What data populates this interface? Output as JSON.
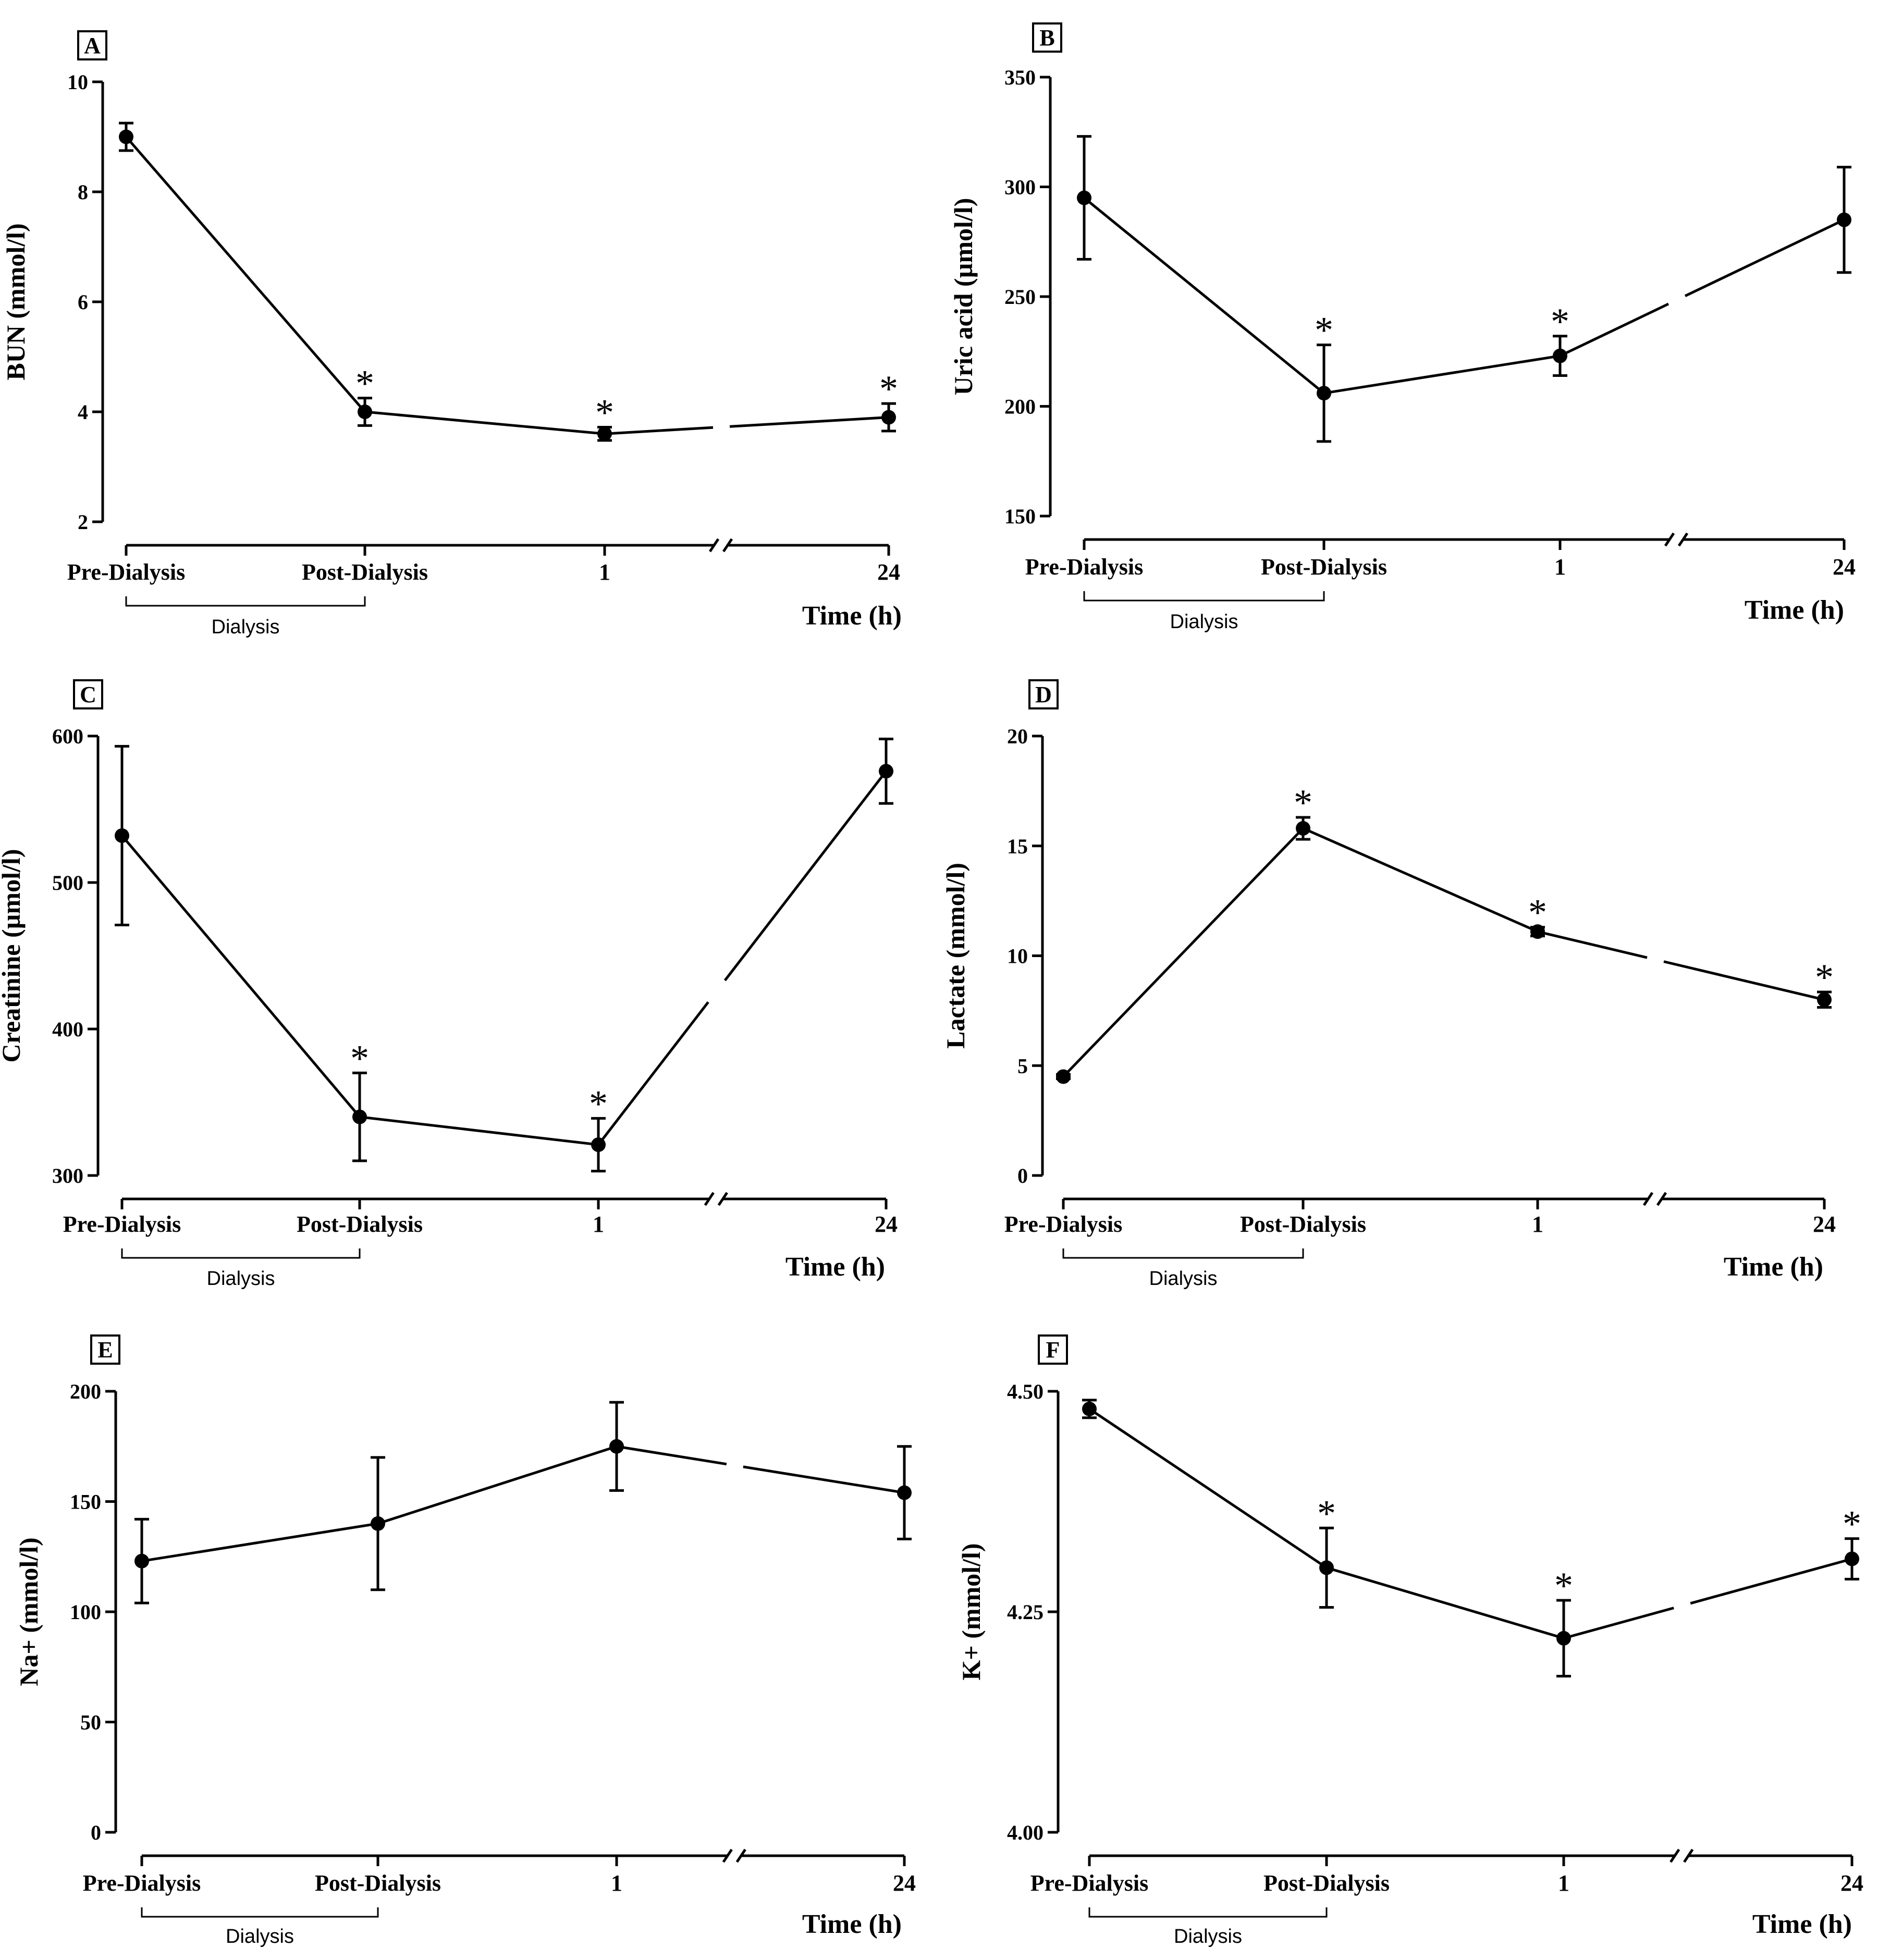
{
  "figure": {
    "common": {
      "categories": [
        "Pre-Dialysis",
        "Post-Dialysis",
        "1",
        "24"
      ],
      "xlabel": "Time (h)",
      "bracket_label": "Dialysis"
    },
    "panels": [
      {
        "id": "A",
        "ylabel": "BUN (mmol/l)"
      },
      {
        "id": "B",
        "ylabel": "Uric acid (µmol/l)"
      },
      {
        "id": "C",
        "ylabel": "Creatinine (µmol/l)"
      },
      {
        "id": "D",
        "ylabel": "Lactate (mmol/l)"
      },
      {
        "id": "E",
        "ylabel": "Na+ (mmol/l)"
      },
      {
        "id": "F",
        "ylabel": "K+ (mmol/l)"
      }
    ]
  },
  "chart_data": [
    {
      "type": "line",
      "panel": "A",
      "categories": [
        "Pre-Dialysis",
        "Post-Dialysis",
        "1",
        "24"
      ],
      "values": [
        9.0,
        4.0,
        3.6,
        3.9
      ],
      "error": [
        0.25,
        0.25,
        0.12,
        0.25
      ],
      "significant": [
        false,
        true,
        true,
        true
      ],
      "ylabel": "BUN (mmol/l)",
      "xlabel": "Time (h)",
      "ylim": [
        2,
        10
      ],
      "yticks": [
        2,
        4,
        6,
        8,
        10
      ],
      "ytick_labels": [
        "2",
        "4",
        "6",
        "8",
        "10"
      ],
      "axis_break": "between 1 and 24"
    },
    {
      "type": "line",
      "panel": "B",
      "categories": [
        "Pre-Dialysis",
        "Post-Dialysis",
        "1",
        "24"
      ],
      "values": [
        295,
        206,
        223,
        285
      ],
      "error": [
        28,
        22,
        9,
        24
      ],
      "significant": [
        false,
        true,
        true,
        false
      ],
      "ylabel": "Uric acid (µmol/l)",
      "xlabel": "Time (h)",
      "ylim": [
        150,
        350
      ],
      "yticks": [
        150,
        200,
        250,
        300,
        350
      ],
      "ytick_labels": [
        "150",
        "200",
        "250",
        "300",
        "350"
      ],
      "axis_break": "between 1 and 24"
    },
    {
      "type": "line",
      "panel": "C",
      "categories": [
        "Pre-Dialysis",
        "Post-Dialysis",
        "1",
        "24"
      ],
      "values": [
        532,
        340,
        321,
        576
      ],
      "error": [
        61,
        30,
        18,
        22
      ],
      "significant": [
        false,
        true,
        true,
        false
      ],
      "ylabel": "Creatinine (µmol/l)",
      "xlabel": "Time (h)",
      "ylim": [
        300,
        600
      ],
      "yticks": [
        300,
        400,
        500,
        600
      ],
      "ytick_labels": [
        "300",
        "400",
        "500",
        "600"
      ],
      "axis_break": "between 1 and 24"
    },
    {
      "type": "line",
      "panel": "D",
      "categories": [
        "Pre-Dialysis",
        "Post-Dialysis",
        "1",
        "24"
      ],
      "values": [
        4.5,
        15.8,
        11.1,
        8.0
      ],
      "error": [
        0.1,
        0.5,
        0.2,
        0.35
      ],
      "significant": [
        false,
        true,
        true,
        true
      ],
      "ylabel": "Lactate (mmol/l)",
      "xlabel": "Time (h)",
      "ylim": [
        0,
        20
      ],
      "yticks": [
        0,
        5,
        10,
        15,
        20
      ],
      "ytick_labels": [
        "0",
        "5",
        "10",
        "15",
        "20"
      ],
      "axis_break": "between 1 and 24"
    },
    {
      "type": "line",
      "panel": "E",
      "categories": [
        "Pre-Dialysis",
        "Post-Dialysis",
        "1",
        "24"
      ],
      "values": [
        123,
        140,
        175,
        154
      ],
      "error": [
        19,
        30,
        20,
        21
      ],
      "significant": [
        false,
        false,
        false,
        false
      ],
      "ylabel": "Na+ (mmol/l)",
      "xlabel": "Time (h)",
      "ylim": [
        0,
        200
      ],
      "yticks": [
        0,
        50,
        100,
        150,
        200
      ],
      "ytick_labels": [
        "0",
        "50",
        "100",
        "150",
        "200"
      ],
      "axis_break": "between 1 and 24"
    },
    {
      "type": "line",
      "panel": "F",
      "categories": [
        "Pre-Dialysis",
        "Post-Dialysis",
        "1",
        "24"
      ],
      "values": [
        4.48,
        4.3,
        4.22,
        4.31
      ],
      "error": [
        0.01,
        0.045,
        0.043,
        0.023
      ],
      "significant": [
        false,
        true,
        true,
        true
      ],
      "ylabel": "K+ (mmol/l)",
      "xlabel": "Time (h)",
      "ylim": [
        4.0,
        4.5
      ],
      "yticks": [
        4.0,
        4.25,
        4.5
      ],
      "ytick_labels": [
        "4.00",
        "4.25",
        "4.50"
      ],
      "axis_break": "between 1 and 24"
    }
  ]
}
